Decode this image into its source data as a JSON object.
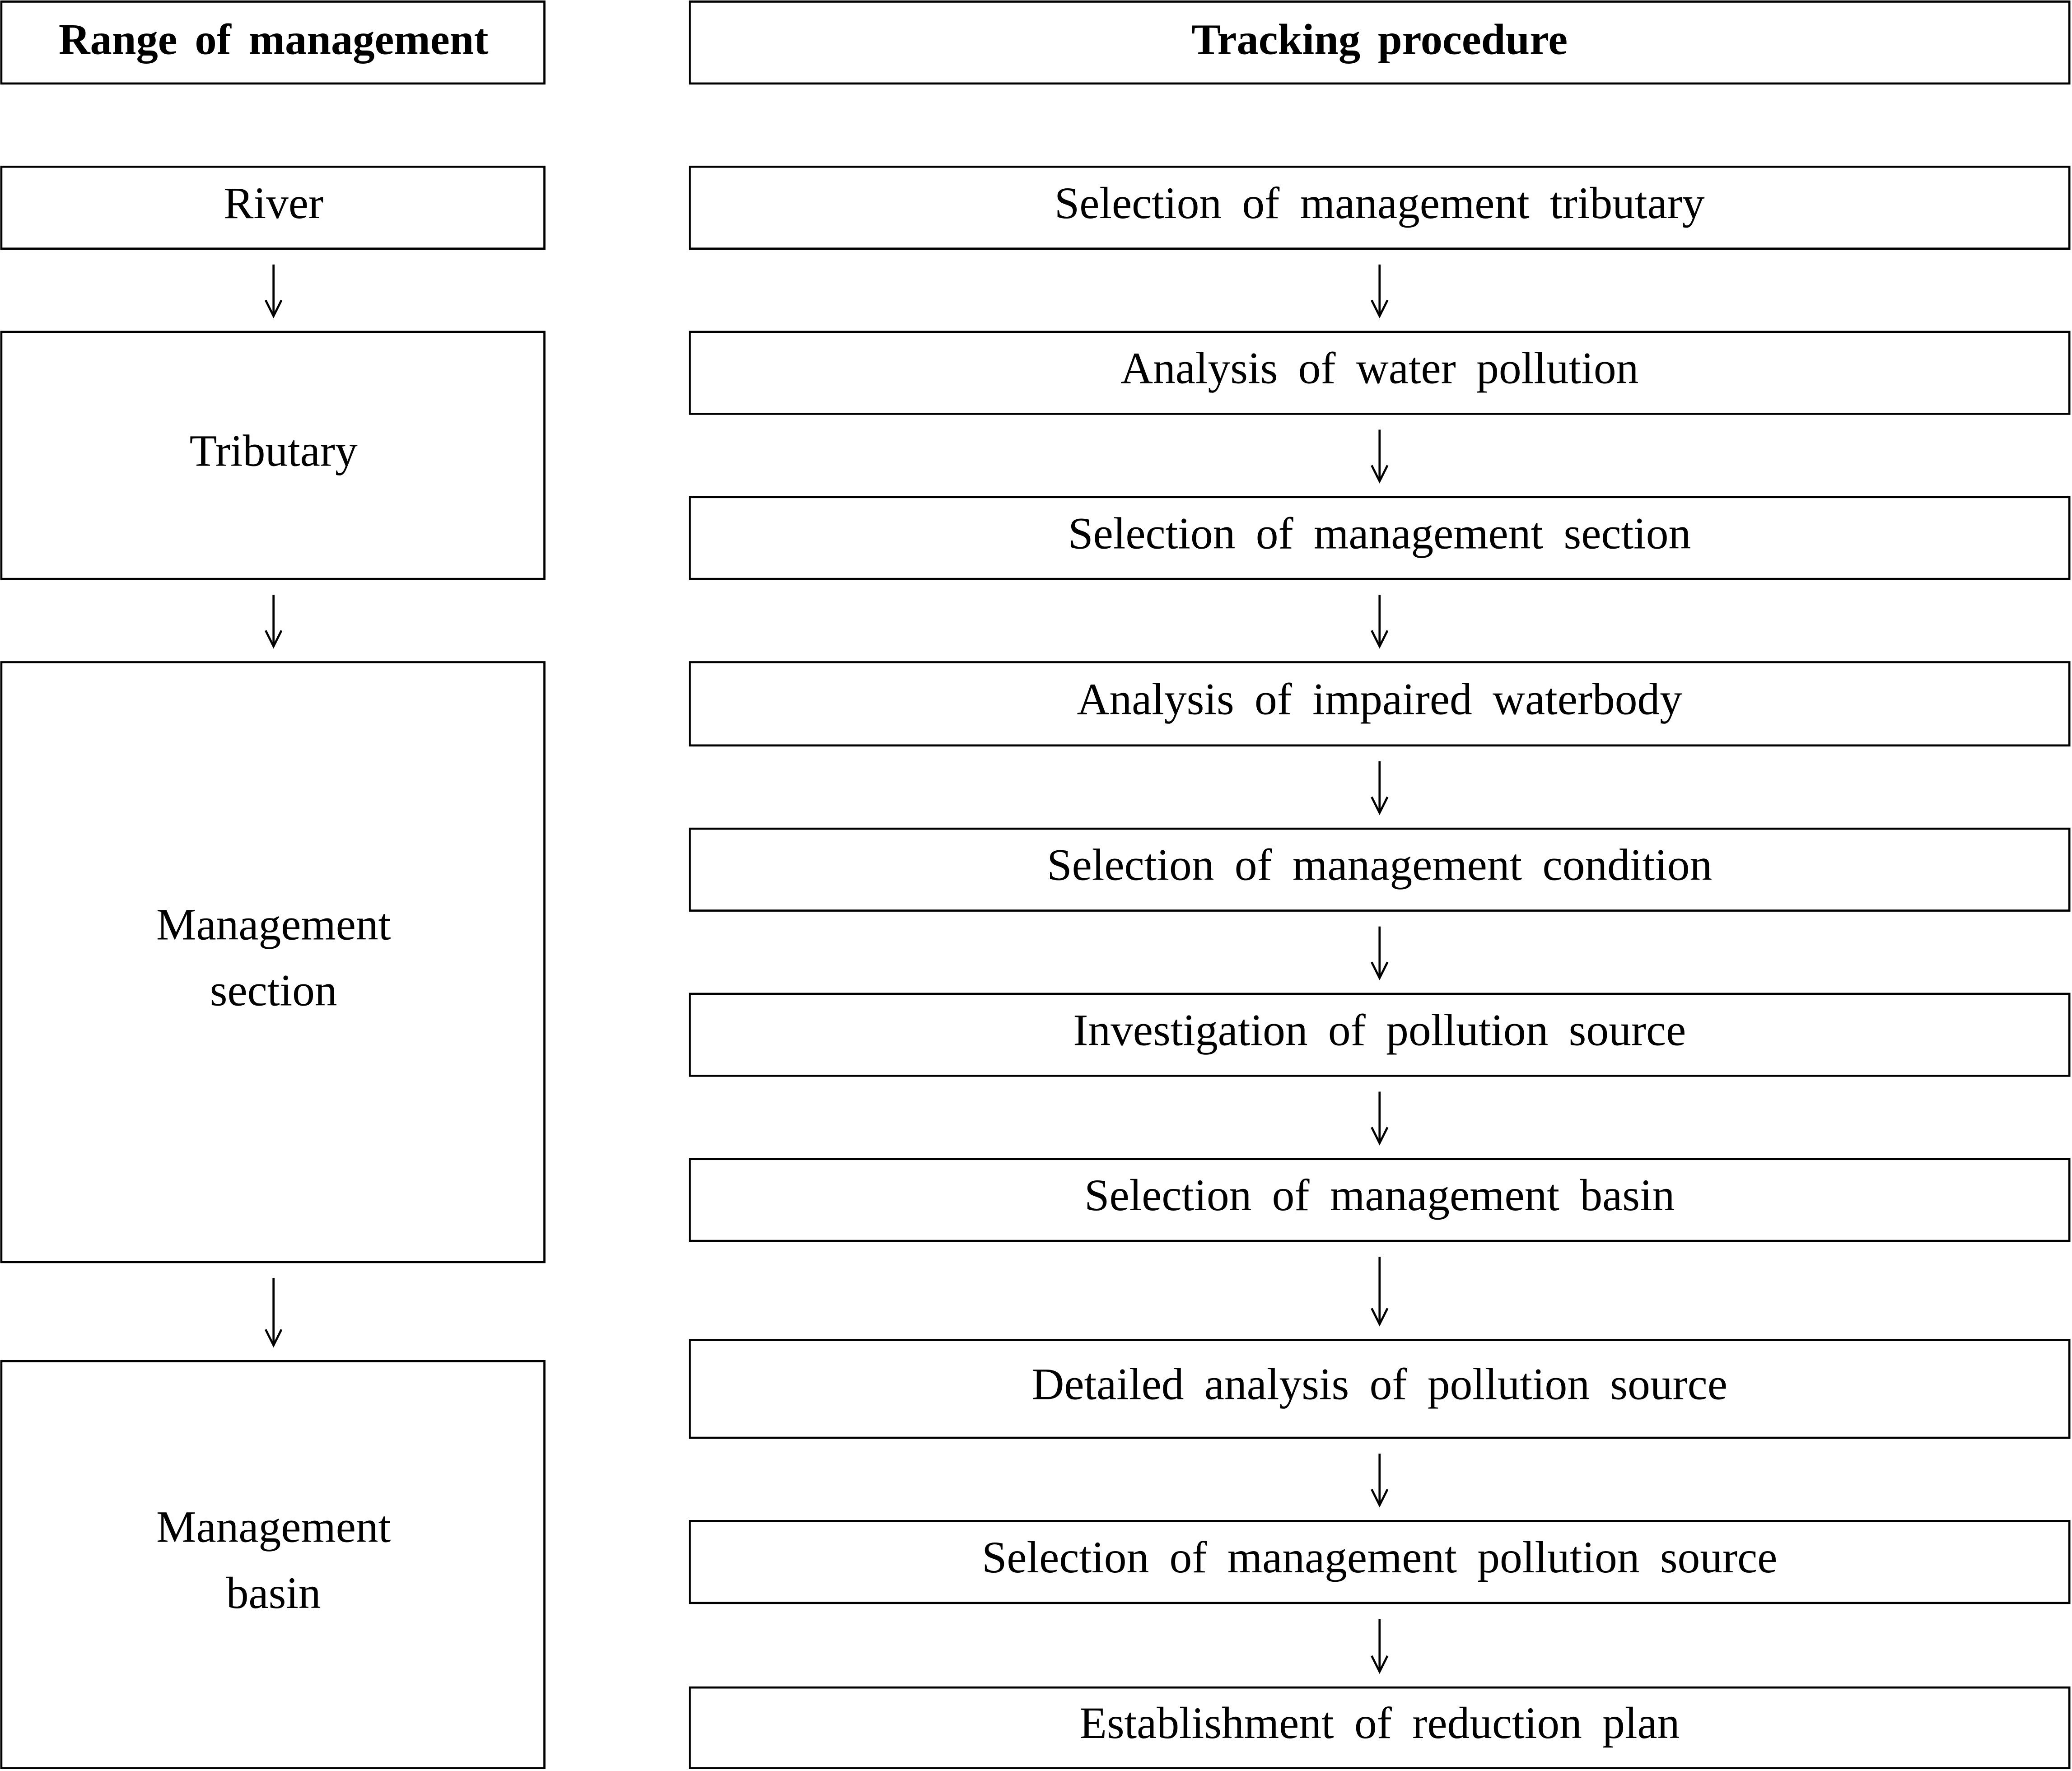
{
  "headers": {
    "left": "Range of management",
    "right": "Tracking procedure"
  },
  "left_column": [
    {
      "lines": [
        "River"
      ]
    },
    {
      "lines": [
        "Tributary"
      ]
    },
    {
      "lines": [
        "Management",
        "section"
      ]
    },
    {
      "lines": [
        "Management",
        "basin"
      ]
    }
  ],
  "right_column": [
    {
      "label": "Selection of management tributary"
    },
    {
      "label": "Analysis of water pollution"
    },
    {
      "label": "Selection of management section"
    },
    {
      "label": "Analysis of impaired waterbody"
    },
    {
      "label": "Selection of management condition"
    },
    {
      "label": "Investigation of pollution source"
    },
    {
      "label": "Selection of management basin"
    },
    {
      "label": "Detailed analysis of pollution source"
    },
    {
      "label": "Selection of management pollution source"
    },
    {
      "label": "Establishment of reduction plan"
    }
  ]
}
